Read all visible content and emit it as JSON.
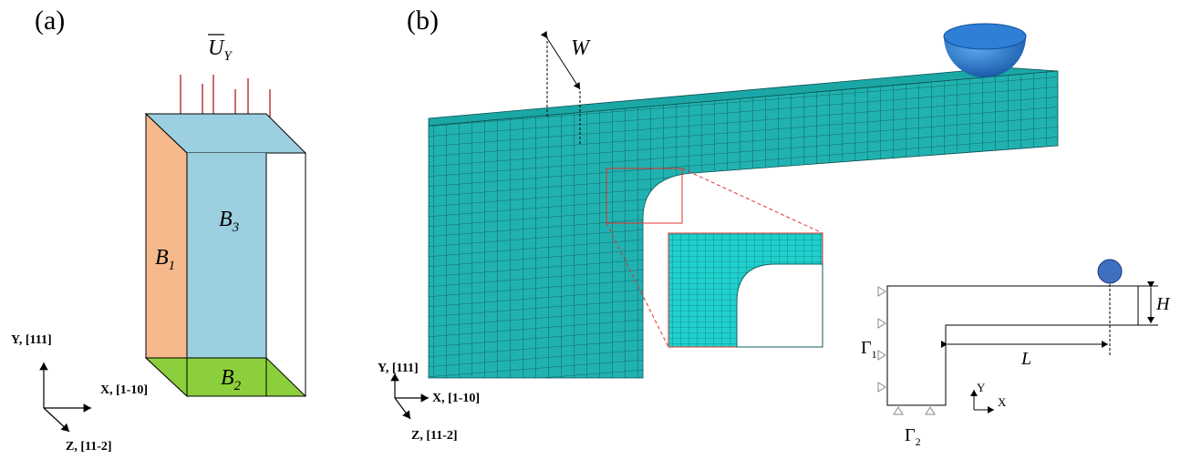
{
  "panel_a": {
    "label": "(a)",
    "load": {
      "base": "U",
      "sub": "Y"
    },
    "blocks": [
      {
        "base": "B",
        "sub": "1"
      },
      {
        "base": "B",
        "sub": "2"
      },
      {
        "base": "B",
        "sub": "3"
      }
    ],
    "axes": {
      "y": "Y, [111]",
      "x": "X, [1-10]",
      "z": "Z, [11-2]"
    }
  },
  "panel_b": {
    "label": "(b)",
    "width": "W",
    "axes": {
      "y": "Y, [111]",
      "x": "X, [1-10]",
      "z": "Z, [11-2]"
    },
    "schematic": {
      "height": "H",
      "length": "L",
      "boundaries": [
        {
          "base": "Γ",
          "sub": "1"
        },
        {
          "base": "Γ",
          "sub": "2"
        }
      ],
      "axes": {
        "y": "Y",
        "x": "X"
      }
    }
  }
}
